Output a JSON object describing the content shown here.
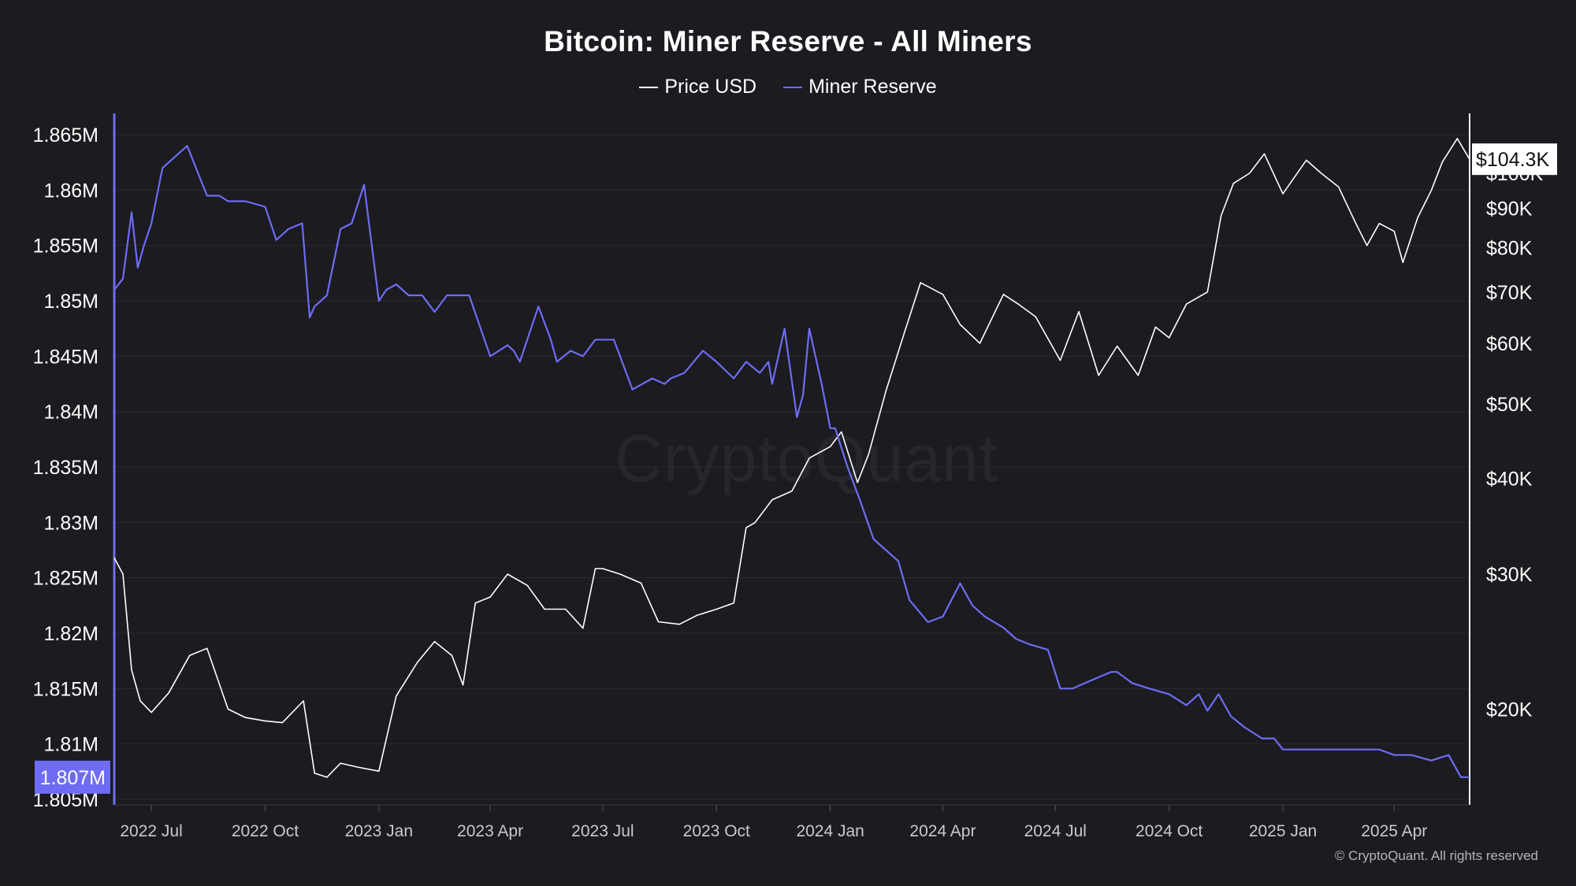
{
  "chart_data": {
    "type": "line",
    "title": "Bitcoin: Miner Reserve - All Miners",
    "series": [
      {
        "name": "Price USD",
        "color": "#ffffff",
        "axis": "right",
        "x": [
          "2022-06-01",
          "2022-06-08",
          "2022-06-15",
          "2022-06-22",
          "2022-07-01",
          "2022-07-15",
          "2022-08-01",
          "2022-08-15",
          "2022-09-01",
          "2022-09-15",
          "2022-10-01",
          "2022-10-15",
          "2022-11-01",
          "2022-11-10",
          "2022-11-20",
          "2022-12-01",
          "2022-12-15",
          "2023-01-01",
          "2023-01-15",
          "2023-02-01",
          "2023-02-15",
          "2023-03-01",
          "2023-03-10",
          "2023-03-20",
          "2023-04-01",
          "2023-04-15",
          "2023-05-01",
          "2023-05-15",
          "2023-06-01",
          "2023-06-15",
          "2023-06-25",
          "2023-07-01",
          "2023-07-15",
          "2023-08-01",
          "2023-08-15",
          "2023-09-01",
          "2023-09-15",
          "2023-10-01",
          "2023-10-15",
          "2023-10-25",
          "2023-11-01",
          "2023-11-15",
          "2023-12-01",
          "2023-12-15",
          "2024-01-01",
          "2024-01-10",
          "2024-01-23",
          "2024-02-01",
          "2024-02-15",
          "2024-03-01",
          "2024-03-14",
          "2024-04-01",
          "2024-04-15",
          "2024-05-01",
          "2024-05-20",
          "2024-06-01",
          "2024-06-15",
          "2024-07-05",
          "2024-07-20",
          "2024-08-05",
          "2024-08-20",
          "2024-09-06",
          "2024-09-20",
          "2024-10-01",
          "2024-10-15",
          "2024-11-01",
          "2024-11-12",
          "2024-11-22",
          "2024-12-05",
          "2024-12-17",
          "2025-01-01",
          "2025-01-20",
          "2025-02-01",
          "2025-02-15",
          "2025-03-01",
          "2025-03-10",
          "2025-03-20",
          "2025-04-01",
          "2025-04-08",
          "2025-04-20",
          "2025-05-01",
          "2025-05-10",
          "2025-05-22",
          "2025-06-01"
        ],
        "values": [
          31500,
          30000,
          22500,
          20500,
          19800,
          21000,
          23500,
          24000,
          20000,
          19500,
          19300,
          19200,
          20500,
          16500,
          16300,
          17000,
          16800,
          16600,
          20800,
          23000,
          24500,
          23500,
          21500,
          27500,
          28000,
          30000,
          29000,
          27000,
          27000,
          25500,
          30500,
          30500,
          30000,
          29200,
          26000,
          25800,
          26500,
          27000,
          27500,
          34500,
          35000,
          37500,
          38500,
          42500,
          44000,
          46000,
          39500,
          43000,
          52000,
          62000,
          72000,
          69500,
          63500,
          60000,
          69500,
          67500,
          65000,
          57000,
          66000,
          54500,
          59500,
          54500,
          63000,
          61000,
          67500,
          70000,
          88000,
          97000,
          100000,
          106000,
          94000,
          104000,
          100000,
          96000,
          86000,
          80500,
          86000,
          84000,
          76500,
          87500,
          95000,
          103500,
          111000,
          104300
        ]
      },
      {
        "name": "Miner Reserve",
        "color": "#6e6cf2",
        "axis": "left",
        "x": [
          "2022-06-01",
          "2022-06-08",
          "2022-06-15",
          "2022-06-20",
          "2022-06-25",
          "2022-07-01",
          "2022-07-10",
          "2022-07-20",
          "2022-07-30",
          "2022-08-15",
          "2022-08-25",
          "2022-09-01",
          "2022-09-15",
          "2022-10-01",
          "2022-10-10",
          "2022-10-20",
          "2022-10-31",
          "2022-11-06",
          "2022-11-10",
          "2022-11-20",
          "2022-12-01",
          "2022-12-10",
          "2022-12-20",
          "2023-01-01",
          "2023-01-07",
          "2023-01-15",
          "2023-01-25",
          "2023-02-05",
          "2023-02-15",
          "2023-02-25",
          "2023-03-05",
          "2023-03-15",
          "2023-04-01",
          "2023-04-15",
          "2023-04-20",
          "2023-04-25",
          "2023-05-10",
          "2023-05-20",
          "2023-05-25",
          "2023-06-05",
          "2023-06-15",
          "2023-06-25",
          "2023-07-10",
          "2023-07-25",
          "2023-08-10",
          "2023-08-20",
          "2023-08-25",
          "2023-09-05",
          "2023-09-20",
          "2023-10-01",
          "2023-10-15",
          "2023-10-25",
          "2023-11-05",
          "2023-11-12",
          "2023-11-15",
          "2023-11-25",
          "2023-12-05",
          "2023-12-10",
          "2023-12-15",
          "2023-12-20",
          "2023-12-25",
          "2024-01-01",
          "2024-01-05",
          "2024-01-15",
          "2024-01-25",
          "2024-02-05",
          "2024-02-15",
          "2024-02-25",
          "2024-03-05",
          "2024-03-20",
          "2024-04-01",
          "2024-04-15",
          "2024-04-25",
          "2024-05-05",
          "2024-05-20",
          "2024-05-30",
          "2024-06-10",
          "2024-06-25",
          "2024-07-05",
          "2024-07-15",
          "2024-07-25",
          "2024-08-15",
          "2024-08-20",
          "2024-09-01",
          "2024-09-15",
          "2024-10-01",
          "2024-10-15",
          "2024-10-25",
          "2024-11-01",
          "2024-11-10",
          "2024-11-20",
          "2024-12-01",
          "2024-12-15",
          "2024-12-25",
          "2025-01-01",
          "2025-01-15",
          "2025-01-30",
          "2025-02-15",
          "2025-03-01",
          "2025-03-20",
          "2025-04-01",
          "2025-04-15",
          "2025-05-01",
          "2025-05-15",
          "2025-05-20",
          "2025-05-25",
          "2025-06-01"
        ],
        "values": [
          1.851,
          1.852,
          1.858,
          1.853,
          1.855,
          1.857,
          1.862,
          1.863,
          1.864,
          1.8595,
          1.8595,
          1.859,
          1.859,
          1.8585,
          1.8555,
          1.8565,
          1.857,
          1.8485,
          1.8495,
          1.8505,
          1.8565,
          1.857,
          1.8605,
          1.85,
          1.851,
          1.8515,
          1.8505,
          1.8505,
          1.849,
          1.8505,
          1.8505,
          1.8505,
          1.845,
          1.846,
          1.8455,
          1.8445,
          1.8495,
          1.8465,
          1.8445,
          1.8455,
          1.845,
          1.8465,
          1.8465,
          1.842,
          1.843,
          1.8425,
          1.843,
          1.8435,
          1.8455,
          1.8445,
          1.843,
          1.8445,
          1.8435,
          1.8445,
          1.8425,
          1.8475,
          1.8395,
          1.8415,
          1.8475,
          1.845,
          1.8425,
          1.8385,
          1.8385,
          1.835,
          1.832,
          1.8285,
          1.8275,
          1.8265,
          1.823,
          1.821,
          1.8215,
          1.8245,
          1.8225,
          1.8215,
          1.8205,
          1.8195,
          1.819,
          1.8185,
          1.815,
          1.815,
          1.8155,
          1.8165,
          1.8165,
          1.8155,
          1.815,
          1.8145,
          1.8135,
          1.8145,
          1.813,
          1.8145,
          1.8125,
          1.8115,
          1.8105,
          1.8105,
          1.8095,
          1.8095,
          1.8095,
          1.8095,
          1.8095,
          1.8095,
          1.809,
          1.809,
          1.8085,
          1.809,
          1.808,
          1.807,
          1.807
        ]
      }
    ],
    "left_axis": {
      "ticks": [
        "1.865M",
        "1.86M",
        "1.855M",
        "1.85M",
        "1.845M",
        "1.84M",
        "1.835M",
        "1.83M",
        "1.825M",
        "1.82M",
        "1.815M",
        "1.81M",
        "1.805M"
      ],
      "tick_values": [
        1.865,
        1.86,
        1.855,
        1.85,
        1.845,
        1.84,
        1.835,
        1.83,
        1.825,
        1.82,
        1.815,
        1.81,
        1.805
      ],
      "ylim": [
        1.8045,
        1.8665
      ],
      "current_label": "1.807M",
      "color": "#6e6cf2"
    },
    "right_axis": {
      "scale": "log",
      "ticks": [
        "$100K",
        "$90K",
        "$80K",
        "$70K",
        "$60K",
        "$50K",
        "$40K",
        "$30K",
        "$20K"
      ],
      "tick_values": [
        100000,
        90000,
        80000,
        70000,
        60000,
        50000,
        40000,
        30000,
        20000
      ],
      "ylim": [
        15000,
        118000
      ],
      "current_label": "$104.3K",
      "color": "#ffffff"
    },
    "x_axis": {
      "ticks": [
        "2022 Jul",
        "2022 Oct",
        "2023 Jan",
        "2023 Apr",
        "2023 Jul",
        "2023 Oct",
        "2024 Jan",
        "2024 Apr",
        "2024 Jul",
        "2024 Oct",
        "2025 Jan",
        "2025 Apr"
      ],
      "tick_dates": [
        "2022-07-01",
        "2022-10-01",
        "2023-01-01",
        "2023-04-01",
        "2023-07-01",
        "2023-10-01",
        "2024-01-01",
        "2024-04-01",
        "2024-07-01",
        "2024-10-01",
        "2025-01-01",
        "2025-04-01"
      ],
      "xlim": [
        "2022-06-01",
        "2025-06-01"
      ]
    },
    "grid": true,
    "legend_position": "top-center"
  },
  "watermark": "CryptoQuant",
  "copyright": "© CryptoQuant. All rights reserved"
}
